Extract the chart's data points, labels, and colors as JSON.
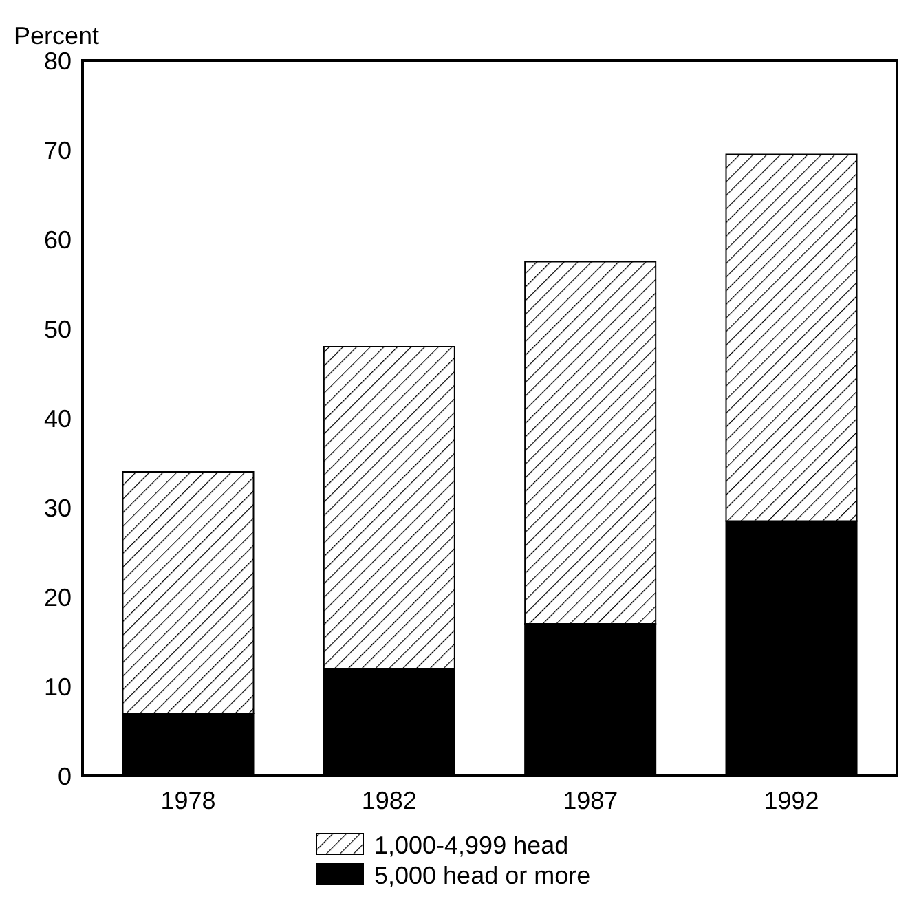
{
  "chart_data": {
    "type": "bar",
    "ylabel": "Percent",
    "categories": [
      "1978",
      "1982",
      "1987",
      "1992"
    ],
    "stacked": true,
    "ylim": [
      0,
      80
    ],
    "yticks": [
      0,
      10,
      20,
      30,
      40,
      50,
      60,
      70,
      80
    ],
    "grid": false,
    "legend": "bottom",
    "series": [
      {
        "name": "5,000 head or more",
        "color": "#000000",
        "values": [
          7,
          12,
          17,
          28.5
        ]
      },
      {
        "name": "1,000-4,999 head",
        "color": "#000000",
        "values": [
          27,
          36,
          40.5,
          41
        ]
      }
    ]
  }
}
